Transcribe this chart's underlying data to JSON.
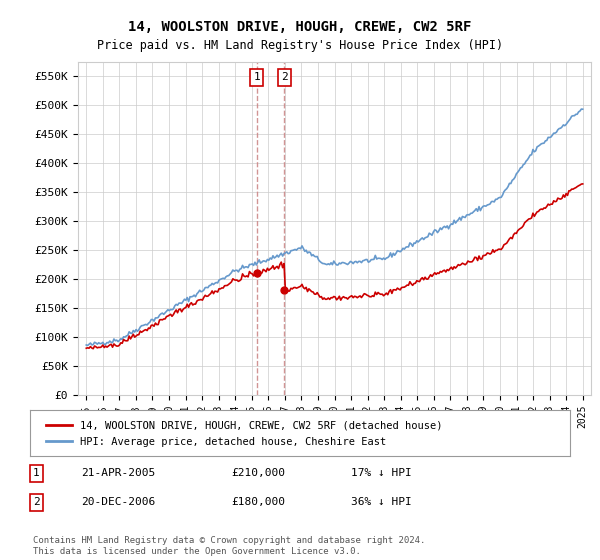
{
  "title": "14, WOOLSTON DRIVE, HOUGH, CREWE, CW2 5RF",
  "subtitle": "Price paid vs. HM Land Registry's House Price Index (HPI)",
  "ylabel_ticks": [
    "£0",
    "£50K",
    "£100K",
    "£150K",
    "£200K",
    "£250K",
    "£300K",
    "£350K",
    "£400K",
    "£450K",
    "£500K",
    "£550K"
  ],
  "ytick_values": [
    0,
    50000,
    100000,
    150000,
    200000,
    250000,
    300000,
    350000,
    400000,
    450000,
    500000,
    550000
  ],
  "ylim": [
    0,
    575000
  ],
  "hpi_color": "#6699cc",
  "price_color": "#cc0000",
  "vline_color": "#cc8888",
  "sale1_date": 2005.3,
  "sale1_price": 210000,
  "sale2_date": 2006.97,
  "sale2_price": 180000,
  "legend1": "14, WOOLSTON DRIVE, HOUGH, CREWE, CW2 5RF (detached house)",
  "legend2": "HPI: Average price, detached house, Cheshire East",
  "table_rows": [
    {
      "num": "1",
      "date": "21-APR-2005",
      "price": "£210,000",
      "hpi": "17% ↓ HPI"
    },
    {
      "num": "2",
      "date": "20-DEC-2006",
      "price": "£180,000",
      "hpi": "36% ↓ HPI"
    }
  ],
  "footer": "Contains HM Land Registry data © Crown copyright and database right 2024.\nThis data is licensed under the Open Government Licence v3.0.",
  "background_color": "#ffffff",
  "grid_color": "#cccccc"
}
